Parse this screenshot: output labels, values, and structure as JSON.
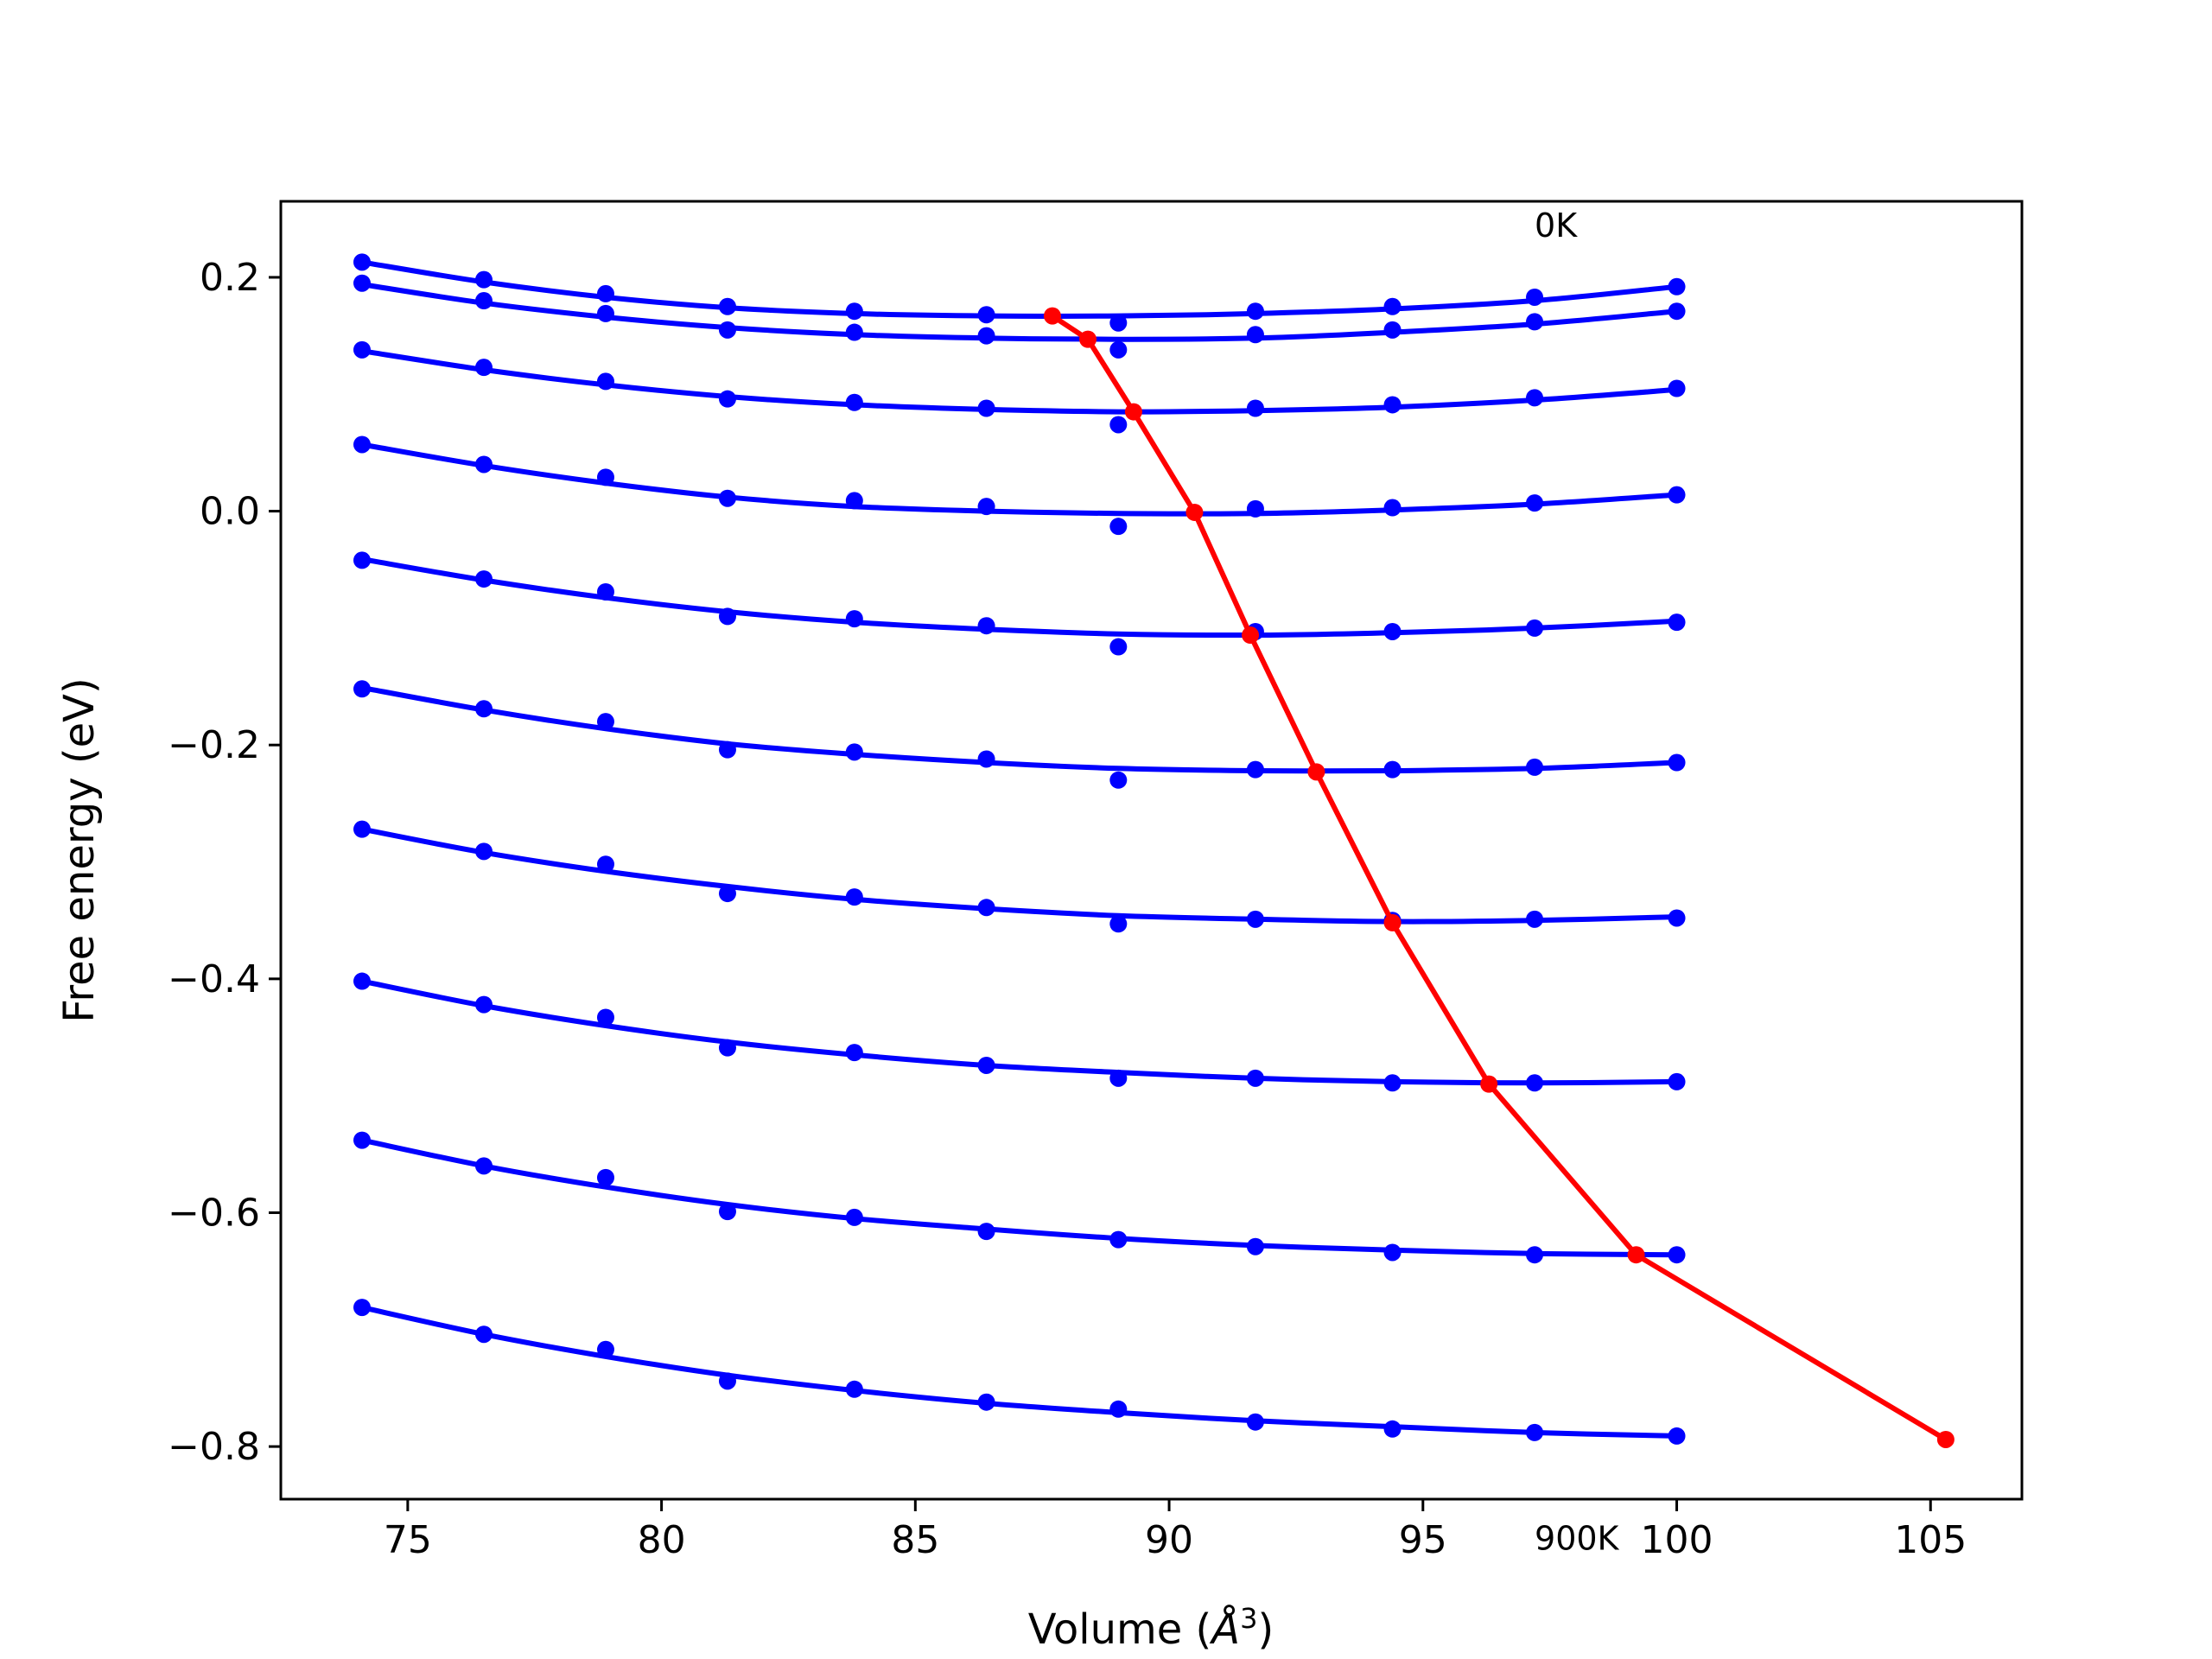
{
  "chart_data": {
    "type": "line",
    "xlabel": "Volume (",
    "xlabel_symbol": "Å",
    "xlabel_exponent": "3",
    "xlabel_close": ")",
    "ylabel": "Free energy (eV)",
    "xlim": [
      72.5,
      106.8
    ],
    "ylim": [
      -0.845,
      0.265
    ],
    "xticks": [
      75,
      80,
      85,
      90,
      95,
      100,
      105
    ],
    "xtick_labels": [
      "75",
      "80",
      "85",
      "90",
      "95",
      "100",
      "105"
    ],
    "yticks": [
      0.2,
      0.0,
      -0.2,
      -0.4,
      -0.6,
      -0.8
    ],
    "ytick_labels": [
      "0.2",
      "0.0",
      "−0.2",
      "−0.4",
      "−0.6",
      "−0.8"
    ],
    "grid": false,
    "annotations": [
      {
        "text": "0K",
        "x": 97.2,
        "y": 0.245
      },
      {
        "text": "900K",
        "x": 97.2,
        "y": -0.878
      }
    ],
    "colors": {
      "curves": "#0000ff",
      "equilibrium": "#ff0000",
      "axes": "#000000"
    },
    "volumes": [
      74.1,
      76.5,
      78.9,
      81.3,
      83.8,
      86.4,
      89.0,
      91.7,
      94.4,
      97.2,
      100.0
    ],
    "isotherms": [
      {
        "data": [
          0.213,
          0.198,
          0.186,
          0.175,
          0.171,
          0.168,
          0.161,
          0.171,
          0.175,
          0.183,
          0.192
        ],
        "fit": [
          0.213,
          0.196,
          0.183,
          0.174,
          0.169,
          0.167,
          0.167,
          0.169,
          0.173,
          0.18,
          0.192
        ]
      },
      {
        "data": [
          0.195,
          0.18,
          0.169,
          0.155,
          0.153,
          0.15,
          0.138,
          0.151,
          0.155,
          0.162,
          0.171
        ],
        "fit": [
          0.194,
          0.178,
          0.166,
          0.157,
          0.151,
          0.148,
          0.147,
          0.148,
          0.153,
          0.16,
          0.171
        ]
      },
      {
        "data": [
          0.138,
          0.123,
          0.111,
          0.096,
          0.093,
          0.088,
          0.074,
          0.088,
          0.091,
          0.097,
          0.105
        ],
        "fit": [
          0.137,
          0.121,
          0.108,
          0.098,
          0.091,
          0.087,
          0.085,
          0.086,
          0.089,
          0.095,
          0.104
        ]
      },
      {
        "data": [
          0.057,
          0.04,
          0.029,
          0.011,
          0.009,
          0.004,
          -0.013,
          0.002,
          0.003,
          0.007,
          0.014
        ],
        "fit": [
          0.057,
          0.039,
          0.024,
          0.012,
          0.004,
          0.0,
          -0.002,
          -0.002,
          0.001,
          0.006,
          0.014
        ]
      },
      {
        "data": [
          -0.042,
          -0.058,
          -0.069,
          -0.09,
          -0.092,
          -0.098,
          -0.116,
          -0.103,
          -0.103,
          -0.1,
          -0.095
        ],
        "fit": [
          -0.041,
          -0.059,
          -0.074,
          -0.086,
          -0.095,
          -0.101,
          -0.105,
          -0.106,
          -0.104,
          -0.1,
          -0.094
        ]
      },
      {
        "data": [
          -0.152,
          -0.169,
          -0.18,
          -0.204,
          -0.206,
          -0.212,
          -0.23,
          -0.221,
          -0.221,
          -0.219,
          -0.215
        ],
        "fit": [
          -0.151,
          -0.17,
          -0.186,
          -0.199,
          -0.208,
          -0.215,
          -0.22,
          -0.222,
          -0.222,
          -0.22,
          -0.215
        ]
      },
      {
        "data": [
          -0.272,
          -0.291,
          -0.302,
          -0.327,
          -0.33,
          -0.339,
          -0.353,
          -0.349,
          -0.35,
          -0.349,
          -0.348
        ],
        "fit": [
          -0.272,
          -0.292,
          -0.308,
          -0.321,
          -0.332,
          -0.34,
          -0.346,
          -0.349,
          -0.351,
          -0.35,
          -0.347
        ]
      },
      {
        "data": [
          -0.402,
          -0.422,
          -0.433,
          -0.459,
          -0.463,
          -0.474,
          -0.485,
          -0.485,
          -0.489,
          -0.489,
          -0.488
        ],
        "fit": [
          -0.402,
          -0.423,
          -0.44,
          -0.454,
          -0.465,
          -0.474,
          -0.48,
          -0.485,
          -0.488,
          -0.489,
          -0.488
        ]
      },
      {
        "data": [
          -0.538,
          -0.56,
          -0.57,
          -0.599,
          -0.604,
          -0.616,
          -0.623,
          -0.629,
          -0.634,
          -0.636,
          -0.636
        ],
        "fit": [
          -0.538,
          -0.56,
          -0.578,
          -0.593,
          -0.605,
          -0.614,
          -0.622,
          -0.628,
          -0.632,
          -0.635,
          -0.636
        ]
      },
      {
        "data": [
          -0.681,
          -0.704,
          -0.717,
          -0.744,
          -0.751,
          -0.762,
          -0.768,
          -0.779,
          -0.785,
          -0.788,
          -0.791
        ],
        "fit": [
          -0.681,
          -0.704,
          -0.723,
          -0.739,
          -0.752,
          -0.763,
          -0.771,
          -0.778,
          -0.783,
          -0.788,
          -0.791
        ]
      }
    ],
    "equilibrium": {
      "x": [
        87.7,
        88.4,
        89.3,
        90.5,
        91.6,
        92.9,
        94.4,
        96.3,
        99.2,
        105.3
      ],
      "y": [
        0.167,
        0.147,
        0.085,
        -0.001,
        -0.106,
        -0.223,
        -0.352,
        -0.49,
        -0.636,
        -0.794
      ]
    }
  }
}
